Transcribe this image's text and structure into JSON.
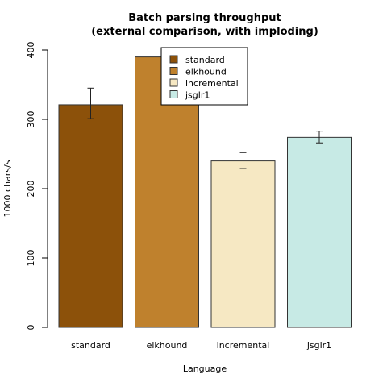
{
  "chart_data": {
    "type": "bar",
    "title_line1": "Batch parsing throughput",
    "title_line2": "(external comparison, with imploding)",
    "xlabel": "Language",
    "ylabel": "1000 chars/s",
    "ylim": [
      0,
      400
    ],
    "yticks": [
      0,
      100,
      200,
      300,
      400
    ],
    "categories": [
      "standard",
      "elkhound",
      "incremental",
      "jsglr1"
    ],
    "values": [
      321,
      390,
      240,
      274
    ],
    "error_low": [
      301,
      381,
      229,
      266
    ],
    "error_high": [
      345,
      399,
      252,
      283
    ],
    "colors": [
      "#8c510a",
      "#bf812d",
      "#f6e8c3",
      "#c7eae5"
    ],
    "legend": {
      "placement": "top-center",
      "entries": [
        "standard",
        "elkhound",
        "incremental",
        "jsglr1"
      ]
    },
    "grid": false
  }
}
